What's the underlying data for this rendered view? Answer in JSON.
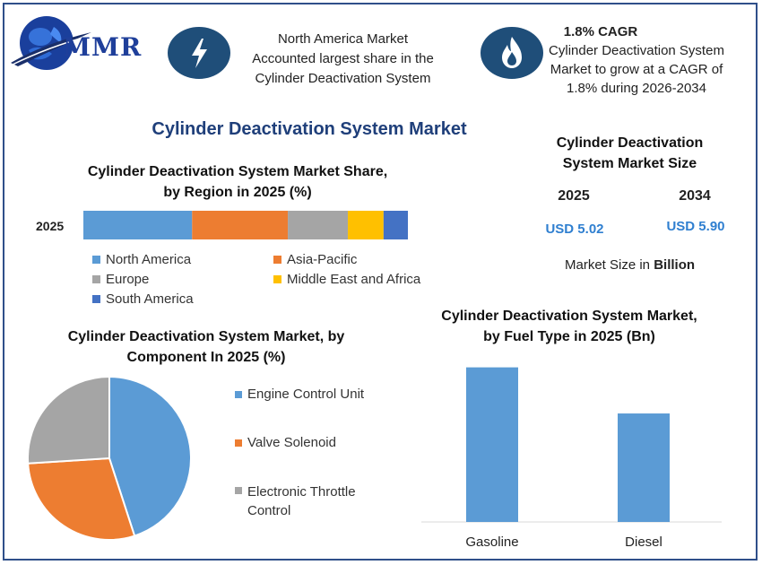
{
  "header": {
    "logo_text": "MMR",
    "block1_lines": [
      "North America Market",
      "Accounted largest share in the",
      "Cylinder Deactivation System"
    ],
    "block2_title": "1.8% CAGR",
    "block2_lines": [
      "Cylinder Deactivation System",
      "Market to grow at a CAGR of",
      "1.8% during 2026-2034"
    ]
  },
  "main_title": "Cylinder Deactivation System Market",
  "market_size": {
    "title_lines": [
      "Cylinder Deactivation",
      "System Market Size"
    ],
    "year1": "2025",
    "year2": "2034",
    "value1": "USD 5.02",
    "value2": "USD 5.90",
    "note_prefix": "Market Size in ",
    "note_bold": "Billion"
  },
  "colors": {
    "blue": "#5b9bd5",
    "orange": "#ed7d31",
    "gray": "#a5a5a5",
    "yellow": "#ffc000",
    "darkblue": "#4472c4",
    "navy": "#1f4e79"
  },
  "chart_data": [
    {
      "type": "bar",
      "orientation": "horizontal-stacked",
      "title_lines": [
        "Cylinder Deactivation System Market Share,",
        "by Region in 2025 (%)"
      ],
      "categories": [
        "2025"
      ],
      "series": [
        {
          "name": "North America",
          "values": [
            33.5
          ],
          "color": "#5b9bd5"
        },
        {
          "name": "Asia-Pacific",
          "values": [
            29.5
          ],
          "color": "#ed7d31"
        },
        {
          "name": "Europe",
          "values": [
            18.5
          ],
          "color": "#a5a5a5"
        },
        {
          "name": "Middle East and Africa",
          "values": [
            11.0
          ],
          "color": "#ffc000"
        },
        {
          "name": "South America",
          "values": [
            7.5
          ],
          "color": "#4472c4"
        }
      ],
      "xlim": [
        0,
        100
      ],
      "legend": "bottom"
    },
    {
      "type": "pie",
      "title_lines": [
        "Cylinder Deactivation System Market, by",
        "Component In 2025 (%)"
      ],
      "slices": [
        {
          "name": "Engine Control Unit",
          "label_lines": [
            "Engine Control Unit"
          ],
          "value": 45,
          "color": "#5b9bd5"
        },
        {
          "name": "Valve Solenoid",
          "label_lines": [
            "Valve Solenoid"
          ],
          "value": 29,
          "color": "#ed7d31"
        },
        {
          "name": "Electronic Throttle Control",
          "label_lines": [
            "Electronic Throttle",
            "Control"
          ],
          "value": 26,
          "color": "#a5a5a5"
        }
      ],
      "legend": "right"
    },
    {
      "type": "bar",
      "title_lines": [
        "Cylinder Deactivation System Market,",
        "by Fuel Type in 2025 (Bn)"
      ],
      "categories": [
        "Gasoline",
        "Diesel"
      ],
      "values": [
        2.95,
        2.07
      ],
      "ylim": [
        0,
        3.2
      ],
      "color": "#5b9bd5"
    }
  ]
}
